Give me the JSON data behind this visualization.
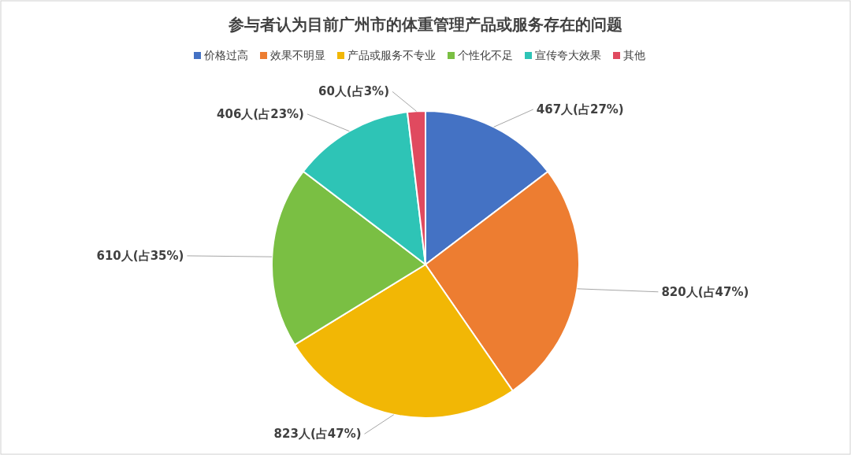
{
  "chart_data": {
    "type": "pie",
    "title": "参与者认为目前广州市的体重管理产品或服务存在的问题",
    "categories": [
      "价格过高",
      "效果不明显",
      "产品或服务不专业",
      "个性化不足",
      "宣传夸大效果",
      "其他"
    ],
    "values": [
      467,
      820,
      823,
      610,
      406,
      60
    ],
    "colors": [
      "#4472c4",
      "#ed7d31",
      "#f2b705",
      "#7abf43",
      "#2ec4b6",
      "#e04a5f"
    ],
    "value_labels": [
      "467人(占27%)",
      "820人(占47%)",
      "823人(占47%)",
      "610人(占35%)",
      "406人(占23%)",
      "60人(占3%)"
    ],
    "legend": "top"
  }
}
